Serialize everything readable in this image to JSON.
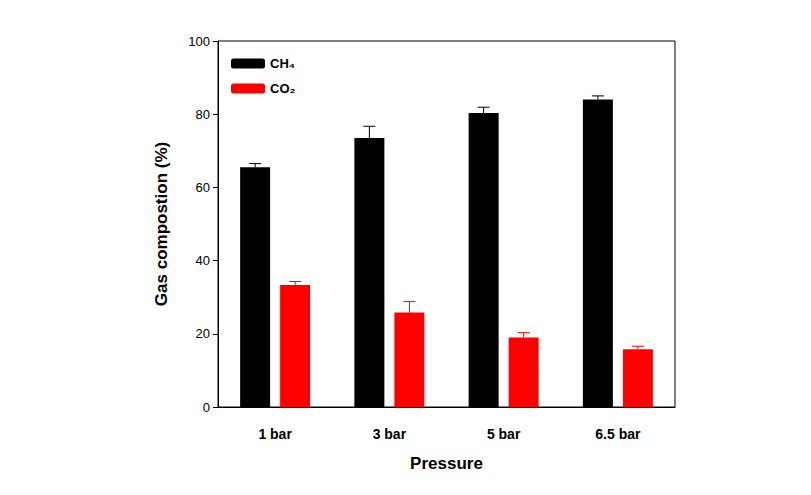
{
  "chart_data": {
    "type": "bar",
    "x_label": "Pressure",
    "y_label": "Gas compostion (%)",
    "categories": [
      "1 bar",
      "3 bar",
      "5 bar",
      "6.5 bar"
    ],
    "series": [
      {
        "name": "CH₄",
        "color": "#000000",
        "values": [
          65.5,
          73.5,
          80.3,
          84.0
        ],
        "errors": [
          1.0,
          3.2,
          1.6,
          1.0
        ]
      },
      {
        "name": "CO₂",
        "color": "#ff0000",
        "values": [
          33.3,
          25.8,
          19.0,
          15.8
        ],
        "errors": [
          1.0,
          3.0,
          1.3,
          0.8
        ]
      }
    ],
    "ylim": [
      0,
      100
    ],
    "yticks": [
      0,
      20,
      40,
      60,
      80,
      100
    ],
    "grid": false,
    "legend": "top-left"
  }
}
